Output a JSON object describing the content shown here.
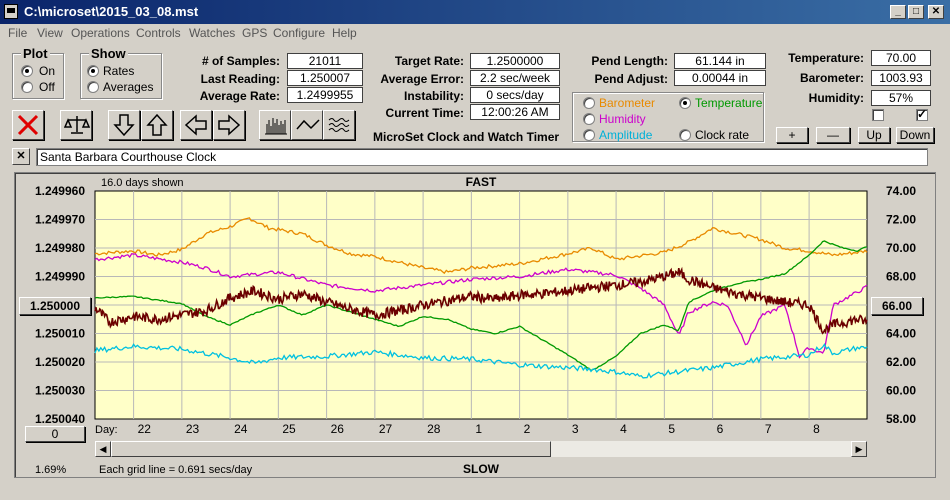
{
  "window": {
    "title": "C:\\microset\\2015_03_08.mst"
  },
  "menu": [
    "File",
    "View",
    "Operations",
    "Controls",
    "Watches",
    "GPS",
    "Configure",
    "Help"
  ],
  "plot": {
    "title": "Plot",
    "on": "On",
    "off": "Off",
    "selected": "on"
  },
  "show": {
    "title": "Show",
    "rates": "Rates",
    "averages": "Averages",
    "selected": "rates"
  },
  "stats": {
    "samples_label": "# of Samples:",
    "samples": "21011",
    "last_reading_label": "Last Reading:",
    "last_reading": "1.250007",
    "average_rate_label": "Average Rate:",
    "average_rate": "1.2499955",
    "target_rate_label": "Target Rate:",
    "target_rate": "1.2500000",
    "average_error_label": "Average Error:",
    "average_error": "2.2 sec/week",
    "instability_label": "Instability:",
    "instability": "0 secs/day",
    "current_time_label": "Current Time:",
    "current_time": "12:00:26 AM",
    "pend_length_label": "Pend Length:",
    "pend_length": "61.144 in",
    "pend_adjust_label": "Pend Adjust:",
    "pend_adjust": "0.00044 in",
    "temperature_label": "Temperature:",
    "temperature": "70.00",
    "barometer_label": "Barometer:",
    "barometer": "1003.93",
    "humidity_label": "Humidity:",
    "humidity": "57%"
  },
  "app_caption": "MicroSet Clock and Watch Timer",
  "env_options": {
    "barometer": "Barometer",
    "temperature": "Temperature",
    "humidity": "Humidity",
    "amplitude": "Amplitude",
    "clock_rate": "Clock rate",
    "selected": "temperature",
    "colors": {
      "barometer": "#e88a00",
      "temperature": "#009900",
      "humidity": "#cc00cc",
      "amplitude": "#00c0e0",
      "clock_rate": "#000000"
    }
  },
  "side_buttons": {
    "plus": "+",
    "minus": "—",
    "up": "Up",
    "down": "Down"
  },
  "clock_name": "Santa Barbara Courthouse Clock",
  "close_x": "✕",
  "chart_data": {
    "type": "line",
    "top_label": "FAST",
    "bottom_label": "SLOW",
    "days_shown": "16.0 days shown",
    "grid_note": "Each grid line = 0.691 secs/day",
    "percent": "1.69%",
    "left_axis_ticks": [
      "1.249960",
      "1.249970",
      "1.249980",
      "1.249990",
      "1.250000",
      "1.250010",
      "1.250020",
      "1.250030",
      "1.250040"
    ],
    "right_axis_ticks": [
      "74.00",
      "72.00",
      "70.00",
      "68.00",
      "66.00",
      "64.00",
      "62.00",
      "60.00",
      "58.00"
    ],
    "left_center_button": "1.250000",
    "right_center_button": "66.00",
    "left_bottom_button": "0",
    "x_label": "Day:",
    "x_ticks": [
      "22",
      "23",
      "24",
      "25",
      "26",
      "27",
      "28",
      "1",
      "2",
      "3",
      "4",
      "5",
      "6",
      "7",
      "8"
    ],
    "x_range": [
      21.2,
      37.2
    ],
    "x_tick_values": [
      22,
      23,
      24,
      25,
      26,
      27,
      28,
      29,
      30,
      31,
      32,
      33,
      34,
      35,
      36
    ],
    "left_range": [
      1.24996,
      1.25004
    ],
    "right_range": [
      58,
      74
    ],
    "series": [
      {
        "name": "Barometer",
        "color": "#e88a00",
        "axis": "right",
        "noise": 0.25,
        "points": [
          [
            21.2,
            69.6
          ],
          [
            22.0,
            69.8
          ],
          [
            22.5,
            69.5
          ],
          [
            23.0,
            69.9
          ],
          [
            23.5,
            71.0
          ],
          [
            24.0,
            71.5
          ],
          [
            24.4,
            72.1
          ],
          [
            24.8,
            71.4
          ],
          [
            25.5,
            71.0
          ],
          [
            26.0,
            70.2
          ],
          [
            26.5,
            69.6
          ],
          [
            27.0,
            69.4
          ],
          [
            27.5,
            69.0
          ],
          [
            28.0,
            68.6
          ],
          [
            28.5,
            68.3
          ],
          [
            29.0,
            68.6
          ],
          [
            30.0,
            68.9
          ],
          [
            31.0,
            69.6
          ],
          [
            31.5,
            70.0
          ],
          [
            32.0,
            69.2
          ],
          [
            33.0,
            69.7
          ],
          [
            33.5,
            70.4
          ],
          [
            34.0,
            71.4
          ],
          [
            34.5,
            71.0
          ],
          [
            35.0,
            70.6
          ],
          [
            35.5,
            70.0
          ],
          [
            36.0,
            69.8
          ],
          [
            36.5,
            69.5
          ],
          [
            37.0,
            69.7
          ],
          [
            37.2,
            69.8
          ]
        ]
      },
      {
        "name": "Humidity",
        "color": "#cc00cc",
        "axis": "right",
        "noise": 0.25,
        "points": [
          [
            21.2,
            69.2
          ],
          [
            22.0,
            69.5
          ],
          [
            23.0,
            69.0
          ],
          [
            23.5,
            68.6
          ],
          [
            24.0,
            68.0
          ],
          [
            25.0,
            68.3
          ],
          [
            26.0,
            67.4
          ],
          [
            26.5,
            67.2
          ],
          [
            27.0,
            67.0
          ],
          [
            28.0,
            67.4
          ],
          [
            29.0,
            67.8
          ],
          [
            30.0,
            68.0
          ],
          [
            31.0,
            68.5
          ],
          [
            32.0,
            68.1
          ],
          [
            32.5,
            67.2
          ],
          [
            33.0,
            66.0
          ],
          [
            33.3,
            63.8
          ],
          [
            33.5,
            65.5
          ],
          [
            34.0,
            66.2
          ],
          [
            34.3,
            66.0
          ],
          [
            34.7,
            63.2
          ],
          [
            35.0,
            65.2
          ],
          [
            35.5,
            66.0
          ],
          [
            35.8,
            62.4
          ],
          [
            36.0,
            63.0
          ],
          [
            36.3,
            62.6
          ],
          [
            36.5,
            66.0
          ],
          [
            37.0,
            66.9
          ],
          [
            37.2,
            67.3
          ]
        ]
      },
      {
        "name": "Temperature",
        "color": "#009900",
        "axis": "right",
        "noise": 0.08,
        "points": [
          [
            21.2,
            66.5
          ],
          [
            22.0,
            66.6
          ],
          [
            23.0,
            66.1
          ],
          [
            23.5,
            65.2
          ],
          [
            24.0,
            64.6
          ],
          [
            24.5,
            65.4
          ],
          [
            25.0,
            66.0
          ],
          [
            25.5,
            65.3
          ],
          [
            26.0,
            66.0
          ],
          [
            26.5,
            65.5
          ],
          [
            27.0,
            65.0
          ],
          [
            27.5,
            64.5
          ],
          [
            28.0,
            65.2
          ],
          [
            28.5,
            65.0
          ],
          [
            29.0,
            64.3
          ],
          [
            29.5,
            64.0
          ],
          [
            30.0,
            64.5
          ],
          [
            30.5,
            63.5
          ],
          [
            31.0,
            62.5
          ],
          [
            31.5,
            61.4
          ],
          [
            32.0,
            62.4
          ],
          [
            32.5,
            64.0
          ],
          [
            33.0,
            64.6
          ],
          [
            33.3,
            64.2
          ],
          [
            33.5,
            66.2
          ],
          [
            34.0,
            67.0
          ],
          [
            34.5,
            67.5
          ],
          [
            35.0,
            67.8
          ],
          [
            35.5,
            68.2
          ],
          [
            36.0,
            69.5
          ],
          [
            36.3,
            70.5
          ],
          [
            36.7,
            70.0
          ],
          [
            37.0,
            69.8
          ],
          [
            37.2,
            70.1
          ]
        ]
      },
      {
        "name": "Amplitude",
        "color": "#00c0e0",
        "axis": "right",
        "noise": 0.35,
        "points": [
          [
            21.2,
            62.8
          ],
          [
            22.0,
            63.1
          ],
          [
            23.0,
            62.9
          ],
          [
            24.0,
            62.3
          ],
          [
            24.5,
            61.9
          ],
          [
            25.0,
            62.3
          ],
          [
            26.0,
            62.4
          ],
          [
            27.0,
            62.7
          ],
          [
            28.0,
            62.3
          ],
          [
            29.0,
            62.2
          ],
          [
            30.0,
            61.8
          ],
          [
            31.0,
            61.6
          ],
          [
            31.5,
            61.5
          ],
          [
            32.0,
            61.3
          ],
          [
            32.5,
            61.0
          ],
          [
            33.0,
            61.2
          ],
          [
            34.0,
            61.6
          ],
          [
            35.0,
            62.2
          ],
          [
            36.0,
            62.5
          ],
          [
            36.3,
            63.2
          ],
          [
            36.5,
            62.6
          ],
          [
            37.0,
            63.0
          ],
          [
            37.2,
            63.0
          ]
        ]
      },
      {
        "name": "Clock rate",
        "color": "#6b0000",
        "axis": "right",
        "noise": 0.7,
        "points": [
          [
            21.2,
            65.8
          ],
          [
            21.5,
            64.8
          ],
          [
            22.0,
            65.2
          ],
          [
            22.5,
            65.0
          ],
          [
            23.0,
            65.3
          ],
          [
            23.5,
            65.6
          ],
          [
            24.0,
            66.5
          ],
          [
            24.5,
            67.0
          ],
          [
            25.0,
            66.4
          ],
          [
            25.5,
            66.8
          ],
          [
            26.0,
            66.2
          ],
          [
            26.5,
            65.7
          ],
          [
            27.0,
            65.3
          ],
          [
            27.5,
            65.6
          ],
          [
            28.0,
            66.0
          ],
          [
            28.5,
            66.3
          ],
          [
            29.0,
            66.6
          ],
          [
            29.5,
            66.4
          ],
          [
            30.0,
            66.7
          ],
          [
            30.5,
            66.8
          ],
          [
            31.0,
            67.0
          ],
          [
            31.5,
            67.2
          ],
          [
            32.0,
            67.4
          ],
          [
            32.5,
            67.6
          ],
          [
            33.0,
            68.0
          ],
          [
            33.3,
            68.3
          ],
          [
            33.5,
            67.8
          ],
          [
            34.0,
            67.2
          ],
          [
            34.5,
            66.8
          ],
          [
            35.0,
            66.5
          ],
          [
            35.5,
            66.2
          ],
          [
            36.0,
            66.0
          ],
          [
            36.3,
            64.2
          ],
          [
            36.5,
            64.6
          ],
          [
            37.0,
            65.0
          ],
          [
            37.2,
            64.8
          ]
        ]
      }
    ]
  }
}
